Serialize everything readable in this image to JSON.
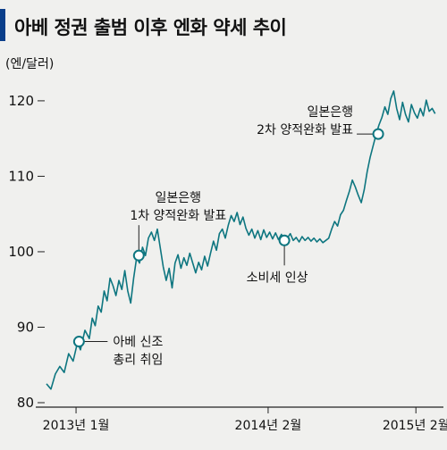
{
  "chart_data": {
    "type": "line",
    "title": "아베 정권 출범 이후 엔화 약세 추이",
    "unit_label": "(엔/달러)",
    "ylim": [
      80,
      122
    ],
    "yticks": [
      80,
      90,
      100,
      110,
      120
    ],
    "xlim": [
      0,
      26.5
    ],
    "xticks": [
      {
        "x": 2,
        "label": "2013년 1월"
      },
      {
        "x": 15,
        "label": "2014년 2월"
      },
      {
        "x": 25,
        "label": "2015년 2월"
      }
    ],
    "series": [
      {
        "points": [
          [
            0.0,
            82.5
          ],
          [
            0.3,
            81.8
          ],
          [
            0.6,
            83.8
          ],
          [
            0.9,
            84.8
          ],
          [
            1.2,
            84.0
          ],
          [
            1.5,
            86.5
          ],
          [
            1.8,
            85.5
          ],
          [
            2.1,
            88.0
          ],
          [
            2.3,
            87.0
          ],
          [
            2.6,
            89.6
          ],
          [
            2.9,
            88.5
          ],
          [
            3.1,
            91.2
          ],
          [
            3.3,
            90.2
          ],
          [
            3.5,
            92.8
          ],
          [
            3.7,
            92.0
          ],
          [
            3.9,
            94.8
          ],
          [
            4.1,
            93.5
          ],
          [
            4.3,
            96.5
          ],
          [
            4.5,
            95.5
          ],
          [
            4.7,
            94.2
          ],
          [
            4.9,
            96.2
          ],
          [
            5.1,
            95.0
          ],
          [
            5.3,
            97.5
          ],
          [
            5.5,
            94.8
          ],
          [
            5.7,
            93.2
          ],
          [
            5.9,
            96.5
          ],
          [
            6.1,
            99.2
          ],
          [
            6.3,
            98.5
          ],
          [
            6.5,
            100.6
          ],
          [
            6.7,
            99.5
          ],
          [
            6.9,
            101.8
          ],
          [
            7.1,
            102.6
          ],
          [
            7.3,
            101.5
          ],
          [
            7.5,
            103.0
          ],
          [
            7.7,
            100.5
          ],
          [
            7.9,
            98.0
          ],
          [
            8.1,
            96.2
          ],
          [
            8.3,
            97.8
          ],
          [
            8.5,
            95.2
          ],
          [
            8.7,
            98.5
          ],
          [
            8.9,
            99.6
          ],
          [
            9.1,
            97.8
          ],
          [
            9.3,
            99.2
          ],
          [
            9.5,
            98.2
          ],
          [
            9.7,
            99.8
          ],
          [
            9.9,
            98.5
          ],
          [
            10.1,
            97.2
          ],
          [
            10.3,
            98.6
          ],
          [
            10.5,
            97.6
          ],
          [
            10.7,
            99.4
          ],
          [
            10.9,
            98.1
          ],
          [
            11.1,
            99.8
          ],
          [
            11.3,
            101.4
          ],
          [
            11.5,
            100.2
          ],
          [
            11.7,
            102.4
          ],
          [
            11.9,
            103.0
          ],
          [
            12.1,
            101.8
          ],
          [
            12.3,
            103.5
          ],
          [
            12.5,
            104.8
          ],
          [
            12.7,
            104.0
          ],
          [
            12.9,
            105.2
          ],
          [
            13.1,
            103.6
          ],
          [
            13.3,
            104.6
          ],
          [
            13.5,
            103.1
          ],
          [
            13.7,
            102.2
          ],
          [
            13.9,
            103.0
          ],
          [
            14.1,
            101.8
          ],
          [
            14.3,
            102.8
          ],
          [
            14.5,
            101.6
          ],
          [
            14.7,
            102.9
          ],
          [
            14.9,
            101.9
          ],
          [
            15.1,
            102.6
          ],
          [
            15.3,
            101.7
          ],
          [
            15.5,
            102.5
          ],
          [
            15.7,
            101.6
          ],
          [
            15.9,
            102.3
          ],
          [
            16.1,
            101.2
          ],
          [
            16.3,
            101.8
          ],
          [
            16.5,
            102.4
          ],
          [
            16.7,
            101.5
          ],
          [
            16.9,
            101.9
          ],
          [
            17.1,
            101.3
          ],
          [
            17.3,
            102.0
          ],
          [
            17.5,
            101.5
          ],
          [
            17.7,
            101.9
          ],
          [
            17.9,
            101.4
          ],
          [
            18.1,
            101.8
          ],
          [
            18.3,
            101.3
          ],
          [
            18.5,
            101.7
          ],
          [
            18.7,
            101.2
          ],
          [
            18.9,
            101.5
          ],
          [
            19.1,
            101.8
          ],
          [
            19.3,
            103.0
          ],
          [
            19.5,
            104.0
          ],
          [
            19.7,
            103.4
          ],
          [
            19.9,
            104.9
          ],
          [
            20.1,
            105.5
          ],
          [
            20.3,
            106.8
          ],
          [
            20.5,
            108.0
          ],
          [
            20.7,
            109.5
          ],
          [
            20.9,
            108.6
          ],
          [
            21.1,
            107.5
          ],
          [
            21.3,
            106.5
          ],
          [
            21.5,
            108.2
          ],
          [
            21.7,
            110.6
          ],
          [
            21.9,
            112.5
          ],
          [
            22.1,
            114.0
          ],
          [
            22.3,
            115.5
          ],
          [
            22.5,
            116.8
          ],
          [
            22.7,
            117.8
          ],
          [
            22.9,
            119.2
          ],
          [
            23.1,
            118.2
          ],
          [
            23.3,
            120.3
          ],
          [
            23.5,
            121.3
          ],
          [
            23.7,
            119.0
          ],
          [
            23.9,
            117.5
          ],
          [
            24.1,
            119.8
          ],
          [
            24.3,
            118.2
          ],
          [
            24.5,
            117.2
          ],
          [
            24.7,
            119.5
          ],
          [
            24.9,
            118.4
          ],
          [
            25.1,
            117.7
          ],
          [
            25.3,
            119.0
          ],
          [
            25.5,
            118.0
          ],
          [
            25.7,
            120.1
          ],
          [
            25.9,
            118.6
          ],
          [
            26.1,
            119.0
          ],
          [
            26.3,
            118.3
          ]
        ]
      }
    ],
    "annotations": [
      {
        "x": 2.2,
        "y": 88.1,
        "lines": [
          "아베 신조",
          "총리 취임"
        ],
        "anchor": "right-below"
      },
      {
        "x": 6.25,
        "y": 99.5,
        "lines": [
          "일본은행",
          "1차 양적완화 발표"
        ],
        "anchor": "above"
      },
      {
        "x": 16.1,
        "y": 101.5,
        "lines": [
          "소비세 인상"
        ],
        "anchor": "below"
      },
      {
        "x": 22.45,
        "y": 115.6,
        "lines": [
          "일본은행",
          "2차 양적완화 발표"
        ],
        "anchor": "above-left"
      }
    ],
    "colors": {
      "line": "#0e7680",
      "title_bar": "#0a3e8a",
      "background": "#f0f0ee"
    }
  }
}
